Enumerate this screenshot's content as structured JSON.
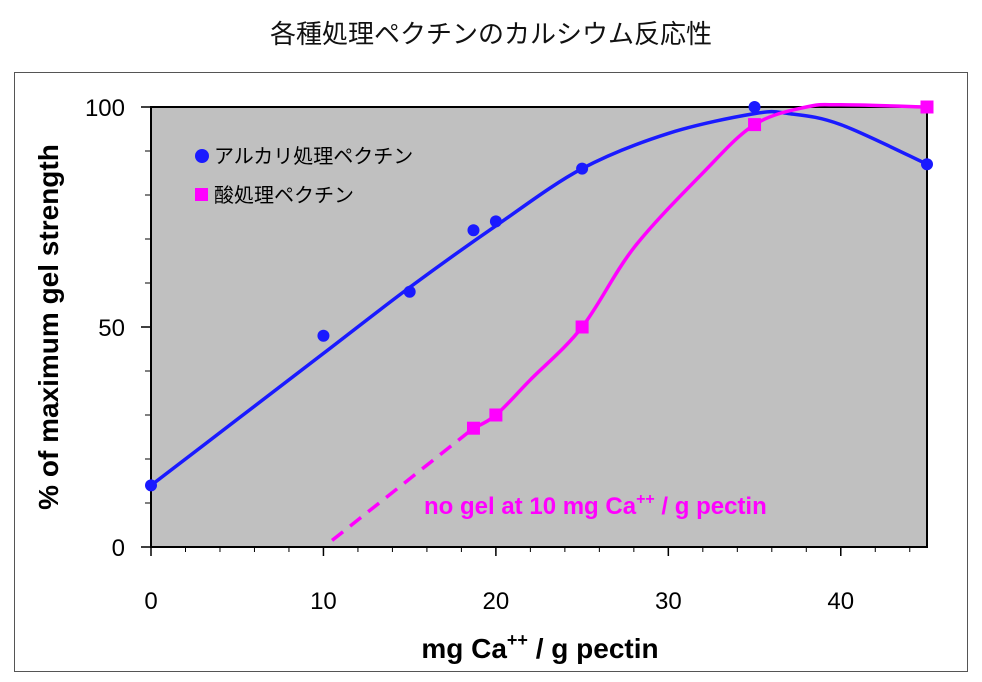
{
  "title": "各種処理ペクチンのカルシウム反応性",
  "chart_data": {
    "type": "line",
    "title": "各種処理ペクチンのカルシウム反応性",
    "xlabel_main": "mg Ca",
    "xlabel_sup": "++",
    "xlabel_rest": " / g pectin",
    "ylabel": "% of maximum gel strength",
    "xlim": [
      0,
      45
    ],
    "ylim": [
      0,
      100
    ],
    "xticks": [
      0,
      10,
      20,
      30,
      40
    ],
    "yticks": [
      0,
      50,
      100
    ],
    "xtick_labels": [
      "0",
      "10",
      "20",
      "30",
      "40"
    ],
    "ytick_labels": [
      "0",
      "50",
      "100"
    ],
    "grid": false,
    "legend_position": "top-left",
    "series": [
      {
        "name": "アルカリ処理ペクチン",
        "marker": "circle",
        "color": "#1a1aff",
        "points": [
          [
            0,
            14
          ],
          [
            10,
            48
          ],
          [
            15,
            58
          ],
          [
            18.7,
            72
          ],
          [
            20,
            74
          ],
          [
            25,
            86
          ],
          [
            35,
            100
          ],
          [
            45,
            87
          ]
        ],
        "curve": [
          [
            0,
            14
          ],
          [
            5,
            29
          ],
          [
            10,
            44
          ],
          [
            15,
            59
          ],
          [
            20,
            73
          ],
          [
            25,
            86
          ],
          [
            30,
            94
          ],
          [
            35,
            98.5
          ],
          [
            37,
            98.5
          ],
          [
            40,
            96
          ],
          [
            45,
            87
          ]
        ]
      },
      {
        "name": "酸処理ペクチン",
        "marker": "square",
        "color": "#ff00ff",
        "points": [
          [
            18.7,
            27
          ],
          [
            20,
            30
          ],
          [
            25,
            50
          ],
          [
            35,
            96
          ],
          [
            45,
            100
          ]
        ],
        "curve": [
          [
            18.7,
            27
          ],
          [
            20,
            30
          ],
          [
            22,
            38
          ],
          [
            25,
            50
          ],
          [
            28,
            68
          ],
          [
            32,
            85
          ],
          [
            35,
            96
          ],
          [
            38,
            100
          ],
          [
            40,
            100.5
          ],
          [
            45,
            100
          ]
        ],
        "dashed_segment": [
          [
            10.5,
            1.5
          ],
          [
            18.7,
            27
          ]
        ]
      }
    ],
    "annotation": {
      "text_main": "no gel at 10 mg Ca",
      "text_sup": "++",
      "text_rest": " / g pectin",
      "color": "#ff00ff"
    }
  }
}
